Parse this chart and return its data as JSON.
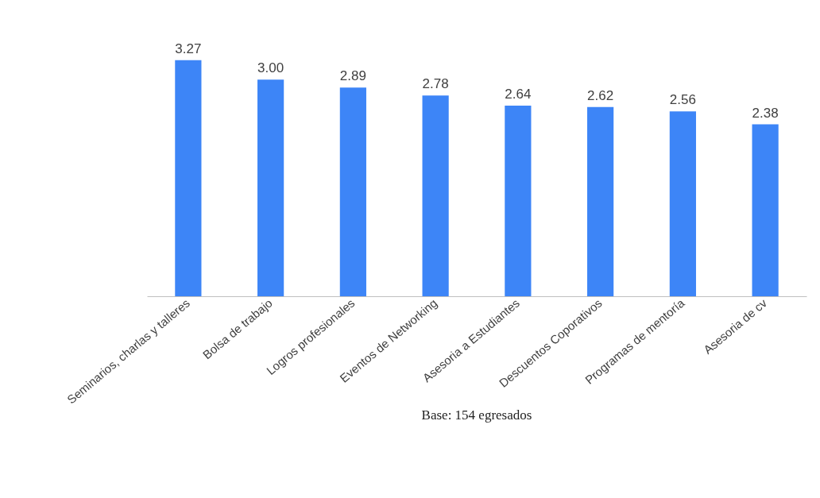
{
  "chart_data": {
    "type": "bar",
    "categories": [
      "Seminarios, charlas y talleres",
      "Bolsa de trabajo",
      "Logros profesionales",
      "Eventos de Networking",
      "Asesoria a Estudiantes",
      "Descuentos Coporativos",
      "Programas de mentoría",
      "Asesoria de cv"
    ],
    "values": [
      3.27,
      3.0,
      2.89,
      2.78,
      2.64,
      2.62,
      2.56,
      2.38
    ],
    "value_labels": [
      "3.27",
      "3.00",
      "2.89",
      "2.78",
      "2.64",
      "2.62",
      "2.56",
      "2.38"
    ],
    "color": "#3d85f7",
    "tick_labels": "x",
    "grid": false,
    "annotations": [
      "Base: 154 egresados"
    ]
  }
}
